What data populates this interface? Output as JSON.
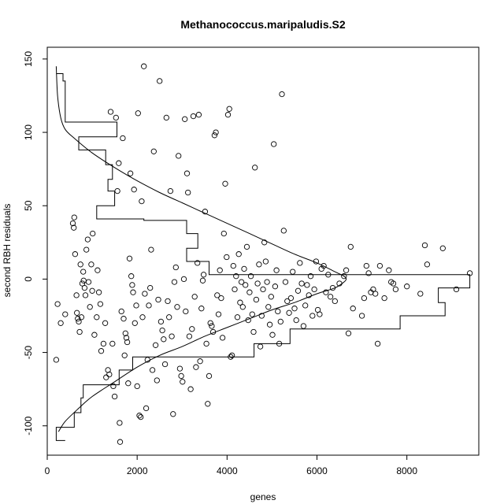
{
  "chart_data": {
    "type": "scatter",
    "title": "Methanococcus.maripaludis.S2",
    "xlabel": "genes",
    "ylabel": "second RBH residuals",
    "xlim": [
      0,
      9600
    ],
    "ylim": [
      -120,
      158
    ],
    "x_ticks": [
      0,
      2000,
      4000,
      6000,
      8000
    ],
    "y_ticks": [
      -100,
      -50,
      0,
      50,
      100,
      150
    ],
    "grid": false,
    "legend": "none",
    "series": [
      {
        "points": [
          [
            230,
            -17
          ],
          [
            200,
            -55
          ],
          [
            300,
            -30
          ],
          [
            400,
            -24
          ],
          [
            570,
            38
          ],
          [
            600,
            42
          ],
          [
            590,
            35
          ],
          [
            620,
            17
          ],
          [
            650,
            -11
          ],
          [
            660,
            -23
          ],
          [
            680,
            -27
          ],
          [
            700,
            -29
          ],
          [
            720,
            -36
          ],
          [
            740,
            10
          ],
          [
            760,
            -26
          ],
          [
            780,
            -3
          ],
          [
            800,
            5
          ],
          [
            810,
            -1
          ],
          [
            830,
            -6
          ],
          [
            850,
            -11
          ],
          [
            870,
            20
          ],
          [
            900,
            27
          ],
          [
            920,
            -2
          ],
          [
            950,
            -19
          ],
          [
            980,
            10
          ],
          [
            1000,
            -8
          ],
          [
            1010,
            31
          ],
          [
            1050,
            -38
          ],
          [
            1100,
            -26
          ],
          [
            1120,
            6
          ],
          [
            1150,
            -9
          ],
          [
            1180,
            -17
          ],
          [
            1200,
            -49
          ],
          [
            1250,
            -44
          ],
          [
            1290,
            -30
          ],
          [
            1310,
            -67
          ],
          [
            1350,
            -62
          ],
          [
            1380,
            -65
          ],
          [
            1410,
            114
          ],
          [
            1450,
            -44
          ],
          [
            1470,
            -73
          ],
          [
            1500,
            -80
          ],
          [
            1530,
            110
          ],
          [
            1560,
            60
          ],
          [
            1590,
            79
          ],
          [
            1610,
            -98
          ],
          [
            1620,
            -111
          ],
          [
            1650,
            -22
          ],
          [
            1680,
            96
          ],
          [
            1700,
            -27
          ],
          [
            1720,
            -52
          ],
          [
            1740,
            -37
          ],
          [
            1760,
            -40
          ],
          [
            1780,
            -43
          ],
          [
            1800,
            -71
          ],
          [
            1830,
            14
          ],
          [
            1850,
            72
          ],
          [
            1870,
            2
          ],
          [
            1890,
            -4
          ],
          [
            1910,
            -9
          ],
          [
            1930,
            61
          ],
          [
            1950,
            -30
          ],
          [
            1980,
            -18
          ],
          [
            2000,
            -73
          ],
          [
            2020,
            113
          ],
          [
            2050,
            -93
          ],
          [
            2080,
            -94
          ],
          [
            2100,
            53
          ],
          [
            2120,
            -26
          ],
          [
            2150,
            145
          ],
          [
            2170,
            -10
          ],
          [
            2200,
            -88
          ],
          [
            2230,
            -55
          ],
          [
            2260,
            -18
          ],
          [
            2290,
            -6
          ],
          [
            2310,
            20
          ],
          [
            2340,
            -62
          ],
          [
            2370,
            87
          ],
          [
            2410,
            -45
          ],
          [
            2440,
            -69
          ],
          [
            2470,
            -14
          ],
          [
            2500,
            135
          ],
          [
            2530,
            -29
          ],
          [
            2560,
            -35
          ],
          [
            2590,
            -41
          ],
          [
            2620,
            -58
          ],
          [
            2650,
            110
          ],
          [
            2680,
            -15
          ],
          [
            2710,
            -26
          ],
          [
            2740,
            60
          ],
          [
            2770,
            -39
          ],
          [
            2800,
            -92
          ],
          [
            2830,
            -2
          ],
          [
            2860,
            8
          ],
          [
            2890,
            -19
          ],
          [
            2920,
            84
          ],
          [
            2950,
            -61
          ],
          [
            2980,
            -66
          ],
          [
            3010,
            -70
          ],
          [
            3040,
            0
          ],
          [
            3060,
            109
          ],
          [
            3080,
            -22
          ],
          [
            3110,
            72
          ],
          [
            3130,
            59
          ],
          [
            3160,
            -39
          ],
          [
            3190,
            -75
          ],
          [
            3220,
            -34
          ],
          [
            3250,
            111
          ],
          [
            3280,
            -12
          ],
          [
            3310,
            -60
          ],
          [
            3340,
            11
          ],
          [
            3370,
            112
          ],
          [
            3400,
            -56
          ],
          [
            3430,
            -20
          ],
          [
            3460,
            -1
          ],
          [
            3480,
            3
          ],
          [
            3510,
            46
          ],
          [
            3540,
            -44
          ],
          [
            3570,
            -85
          ],
          [
            3600,
            -66
          ],
          [
            3630,
            -30
          ],
          [
            3660,
            -32
          ],
          [
            3690,
            -36
          ],
          [
            3720,
            98
          ],
          [
            3750,
            100
          ],
          [
            3780,
            -11
          ],
          [
            3810,
            -24
          ],
          [
            3840,
            6
          ],
          [
            3870,
            -13
          ],
          [
            3900,
            -40
          ],
          [
            3930,
            31
          ],
          [
            3960,
            65
          ],
          [
            3990,
            15
          ],
          [
            4020,
            112
          ],
          [
            4050,
            116
          ],
          [
            4080,
            -53
          ],
          [
            4110,
            -52
          ],
          [
            4140,
            9
          ],
          [
            4170,
            -7
          ],
          [
            4200,
            2
          ],
          [
            4230,
            -26
          ],
          [
            4260,
            17
          ],
          [
            4290,
            -16
          ],
          [
            4320,
            -2
          ],
          [
            4350,
            -19
          ],
          [
            4380,
            7
          ],
          [
            4410,
            -4
          ],
          [
            4440,
            22
          ],
          [
            4470,
            -28
          ],
          [
            4500,
            -9
          ],
          [
            4530,
            2
          ],
          [
            4560,
            -24
          ],
          [
            4590,
            -36
          ],
          [
            4620,
            76
          ],
          [
            4650,
            -14
          ],
          [
            4680,
            -3
          ],
          [
            4710,
            10
          ],
          [
            4740,
            -46
          ],
          [
            4770,
            -25
          ],
          [
            4800,
            -7
          ],
          [
            4830,
            25
          ],
          [
            4860,
            12
          ],
          [
            4890,
            -2
          ],
          [
            4920,
            -19
          ],
          [
            4950,
            -31
          ],
          [
            4980,
            -12
          ],
          [
            5010,
            -38
          ],
          [
            5040,
            92
          ],
          [
            5070,
            -5
          ],
          [
            5100,
            6
          ],
          [
            5130,
            -22
          ],
          [
            5160,
            -44
          ],
          [
            5190,
            -29
          ],
          [
            5220,
            126
          ],
          [
            5260,
            33
          ],
          [
            5300,
            -2
          ],
          [
            5340,
            -15
          ],
          [
            5380,
            -23
          ],
          [
            5420,
            -13
          ],
          [
            5460,
            5
          ],
          [
            5500,
            -20
          ],
          [
            5540,
            -28
          ],
          [
            5580,
            -8
          ],
          [
            5620,
            11
          ],
          [
            5660,
            -3
          ],
          [
            5700,
            -32
          ],
          [
            5740,
            -18
          ],
          [
            5780,
            -4
          ],
          [
            5820,
            -11
          ],
          [
            5860,
            2
          ],
          [
            5900,
            -25
          ],
          [
            5940,
            -7
          ],
          [
            5980,
            12
          ],
          [
            6020,
            -21
          ],
          [
            6060,
            -24
          ],
          [
            6100,
            7
          ],
          [
            6150,
            9
          ],
          [
            6200,
            -9
          ],
          [
            6250,
            3
          ],
          [
            6300,
            -12
          ],
          [
            6350,
            -6
          ],
          [
            6400,
            -15
          ],
          [
            6500,
            -3
          ],
          [
            6600,
            2
          ],
          [
            6650,
            6
          ],
          [
            6700,
            -37
          ],
          [
            6750,
            22
          ],
          [
            6800,
            -20
          ],
          [
            7000,
            -25
          ],
          [
            7050,
            -13
          ],
          [
            7100,
            9
          ],
          [
            7150,
            4
          ],
          [
            7200,
            -9
          ],
          [
            7250,
            -7
          ],
          [
            7300,
            -10
          ],
          [
            7350,
            -44
          ],
          [
            7400,
            9
          ],
          [
            7500,
            -13
          ],
          [
            7600,
            6
          ],
          [
            7650,
            -2
          ],
          [
            7700,
            -3
          ],
          [
            7750,
            -7
          ],
          [
            8000,
            -5
          ],
          [
            8300,
            -10
          ],
          [
            8400,
            23
          ],
          [
            8450,
            10
          ],
          [
            8800,
            21
          ],
          [
            9100,
            -7
          ],
          [
            9400,
            4
          ]
        ]
      }
    ],
    "density_curve": [
      [
        200,
        145
      ],
      [
        230,
        125
      ],
      [
        300,
        110
      ],
      [
        400,
        102
      ],
      [
        600,
        96
      ],
      [
        1000,
        86
      ],
      [
        1500,
        76
      ],
      [
        2000,
        67
      ],
      [
        2500,
        59
      ],
      [
        3000,
        52
      ],
      [
        3500,
        45
      ],
      [
        4000,
        38
      ],
      [
        4500,
        31
      ],
      [
        5000,
        24
      ],
      [
        5500,
        17
      ],
      [
        6000,
        11
      ],
      [
        6400,
        5
      ],
      [
        6600,
        2
      ],
      [
        6650,
        0
      ],
      [
        6600,
        -2
      ],
      [
        6400,
        -6
      ],
      [
        6000,
        -10
      ],
      [
        5500,
        -16
      ],
      [
        5000,
        -21
      ],
      [
        4500,
        -27
      ],
      [
        4000,
        -33
      ],
      [
        3500,
        -39
      ],
      [
        3000,
        -46
      ],
      [
        2500,
        -52
      ],
      [
        2000,
        -60
      ],
      [
        1500,
        -70
      ],
      [
        1000,
        -80
      ],
      [
        700,
        -88
      ],
      [
        400,
        -97
      ],
      [
        250,
        -104
      ]
    ],
    "histogram_steps": [
      [
        200,
        140
      ],
      [
        350,
        140
      ],
      [
        350,
        135
      ],
      [
        400,
        135
      ],
      [
        400,
        107
      ],
      [
        1550,
        107
      ],
      [
        1550,
        97
      ],
      [
        700,
        97
      ],
      [
        700,
        88
      ],
      [
        1300,
        88
      ],
      [
        1300,
        78
      ],
      [
        1450,
        78
      ],
      [
        1450,
        68
      ],
      [
        1350,
        68
      ],
      [
        1350,
        60
      ],
      [
        1500,
        60
      ],
      [
        1500,
        50
      ],
      [
        1100,
        50
      ],
      [
        1100,
        41
      ],
      [
        2150,
        41
      ],
      [
        2150,
        40
      ],
      [
        3100,
        40
      ],
      [
        3100,
        31
      ],
      [
        3350,
        31
      ],
      [
        3350,
        21
      ],
      [
        3100,
        21
      ],
      [
        3100,
        12
      ],
      [
        3600,
        12
      ],
      [
        3600,
        3
      ],
      [
        9400,
        3
      ],
      [
        9400,
        -6
      ],
      [
        8700,
        -6
      ],
      [
        8700,
        -16
      ],
      [
        8850,
        -16
      ],
      [
        8850,
        -25
      ],
      [
        7850,
        -25
      ],
      [
        7850,
        -34
      ],
      [
        5400,
        -34
      ],
      [
        5400,
        -44
      ],
      [
        4600,
        -44
      ],
      [
        4600,
        -53
      ],
      [
        1900,
        -53
      ],
      [
        1900,
        -62
      ],
      [
        1600,
        -62
      ],
      [
        1600,
        -72
      ],
      [
        800,
        -72
      ],
      [
        800,
        -81
      ],
      [
        750,
        -81
      ],
      [
        750,
        -91
      ],
      [
        600,
        -91
      ],
      [
        600,
        -101
      ],
      [
        200,
        -101
      ],
      [
        200,
        -110
      ],
      [
        400,
        -110
      ]
    ]
  }
}
